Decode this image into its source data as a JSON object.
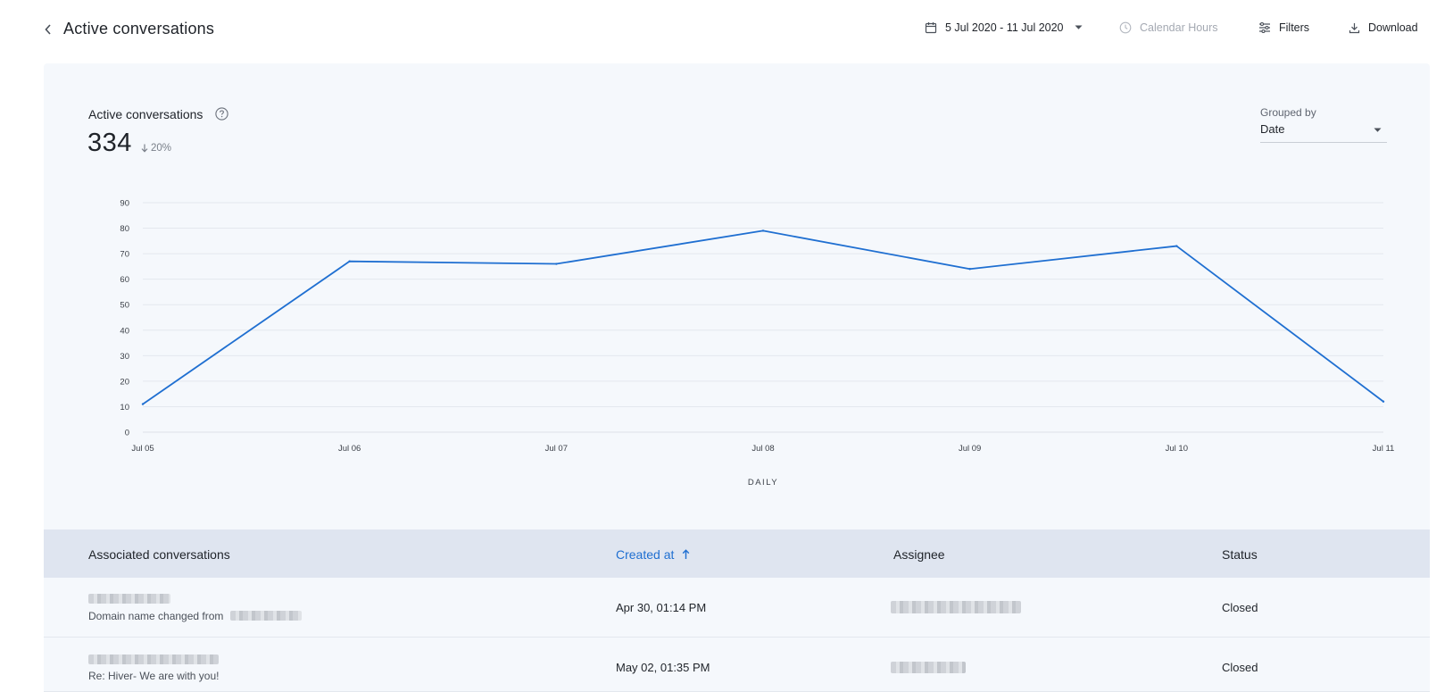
{
  "header": {
    "title": "Active conversations",
    "date_range": "5 Jul 2020 - 11 Jul 2020",
    "calendar_hours": "Calendar Hours",
    "filters": "Filters",
    "download": "Download"
  },
  "metric": {
    "label": "Active conversations",
    "value": "334",
    "delta": "20%"
  },
  "grouping": {
    "label": "Grouped by",
    "value": "Date"
  },
  "chart_data": {
    "type": "line",
    "categories": [
      "Jul 05",
      "Jul 06",
      "Jul 07",
      "Jul 08",
      "Jul 09",
      "Jul 10",
      "Jul 11"
    ],
    "values": [
      11,
      67,
      66,
      79,
      64,
      73,
      12
    ],
    "yticks": [
      0,
      10,
      20,
      30,
      40,
      50,
      60,
      70,
      80,
      90
    ],
    "ylim": [
      0,
      90
    ],
    "xlabel": "DAILY",
    "ylabel": "",
    "grid": true,
    "line_color": "#1f6fd1"
  },
  "table": {
    "columns": [
      "Associated conversations",
      "Created at",
      "Assignee",
      "Status"
    ],
    "rows": [
      {
        "subject": "Domain name changed from",
        "created_at": "Apr 30, 01:14 PM",
        "status": "Closed"
      },
      {
        "subject": "Re: Hiver- We are with you!",
        "created_at": "May 02, 01:35 PM",
        "status": "Closed"
      }
    ]
  },
  "colors": {
    "accent": "#1f6fd1",
    "panel_bg": "#f5f8fc",
    "table_header_bg": "#dfe5f0"
  }
}
